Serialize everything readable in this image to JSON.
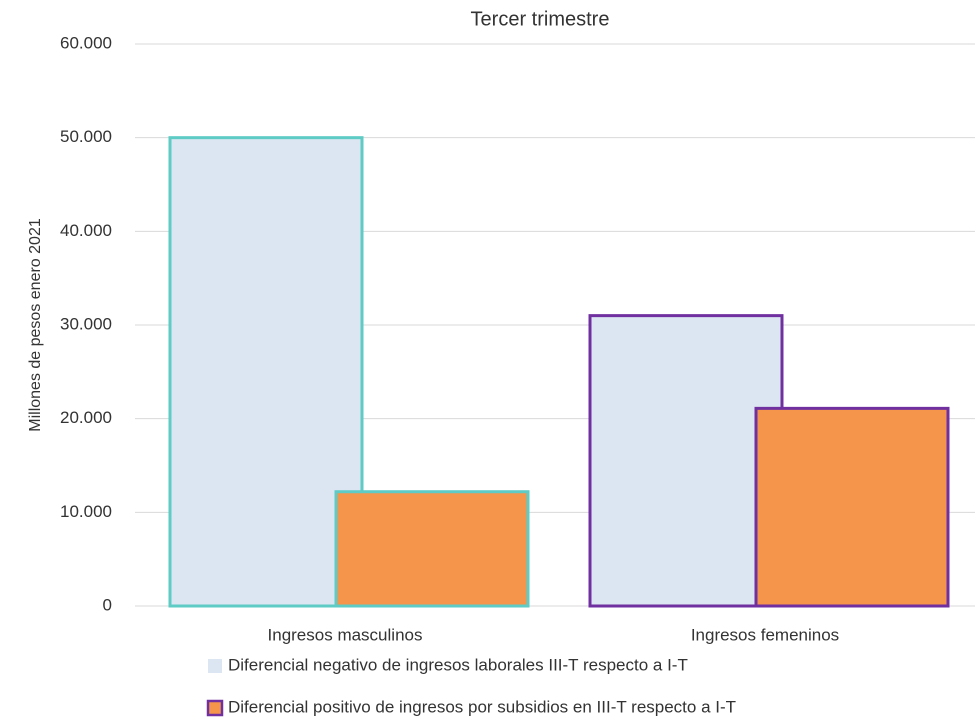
{
  "chart_data": {
    "type": "bar",
    "title": "Tercer trimestre",
    "y_label": "Millones de pesos enero 2021",
    "categories": [
      "Ingresos masculinos",
      "Ingresos femeninos"
    ],
    "category_edge_colors": [
      "#5ecbc5",
      "#7030a0"
    ],
    "series": [
      {
        "name": "Diferencial negativo de ingresos laborales III-T respecto a I-T",
        "color": "#dce6f2",
        "values": [
          50000,
          31000
        ]
      },
      {
        "name": "Diferencial positivo de ingresos por subsidios en III-T respecto a I-T",
        "color": "#f4954b",
        "legend_edge_color": "#7030a0",
        "values": [
          12200,
          21100
        ]
      }
    ],
    "ylim": [
      0,
      60000
    ],
    "yticks": [
      0,
      {
        "value": 10000,
        "label": "10.000"
      },
      {
        "value": 20000,
        "label": "20.000"
      },
      {
        "value": 30000,
        "label": "30.000"
      },
      {
        "value": 40000,
        "label": "40.000"
      },
      {
        "value": 50000,
        "label": "50.000"
      },
      {
        "value": 60000,
        "label": "60.000"
      }
    ],
    "grid": true
  }
}
